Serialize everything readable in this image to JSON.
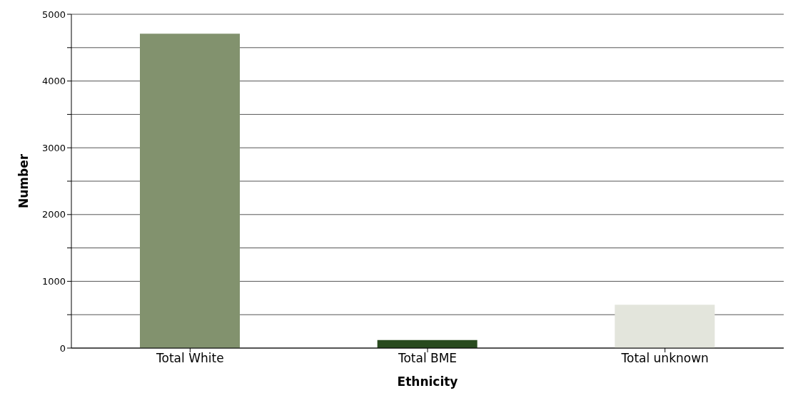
{
  "chart_data": {
    "type": "bar",
    "xlabel": "Ethnicity",
    "ylabel": "Number",
    "categories": [
      "Total White",
      "Total BME",
      "Total unknown"
    ],
    "values": [
      4710,
      120,
      650
    ],
    "colors": [
      "#82926e",
      "#284a1e",
      "#e3e5dc"
    ],
    "ylim": [
      0,
      5000
    ],
    "yticks": [
      0,
      {
        "value": 500,
        "label": null
      },
      1000,
      {
        "value": 1500,
        "label": null
      },
      2000,
      {
        "value": 2500,
        "label": null
      },
      3000,
      {
        "value": 3500,
        "label": null
      },
      4000,
      {
        "value": 4500,
        "label": null
      },
      5000
    ],
    "grid": "y",
    "legend": false
  }
}
